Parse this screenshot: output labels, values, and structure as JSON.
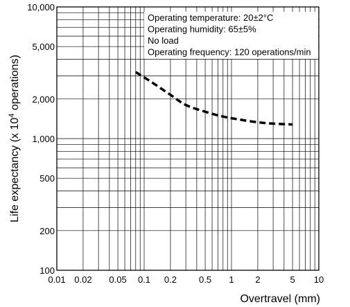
{
  "chart_data": {
    "type": "line",
    "xlabel": "Overtravel (mm)",
    "ylabel": "Life expectancy  (x 10",
    "ylabel_superscript": "4",
    "ylabel_suffix": " operations)",
    "x_scale": "log",
    "y_scale": "log",
    "xlim": [
      0.01,
      10
    ],
    "ylim": [
      100,
      10000
    ],
    "x_tick_labels": [
      {
        "value": 0.01,
        "label": "0.01"
      },
      {
        "value": 0.02,
        "label": "0.02"
      },
      {
        "value": 0.05,
        "label": "0.05"
      },
      {
        "value": 0.1,
        "label": "0.1"
      },
      {
        "value": 0.2,
        "label": "0.2"
      },
      {
        "value": 0.5,
        "label": "0.5"
      },
      {
        "value": 1,
        "label": "1"
      },
      {
        "value": 2,
        "label": "2"
      },
      {
        "value": 5,
        "label": "5"
      },
      {
        "value": 10,
        "label": "10"
      }
    ],
    "y_tick_labels": [
      {
        "value": 100,
        "label": "100"
      },
      {
        "value": 200,
        "label": "200"
      },
      {
        "value": 500,
        "label": "500"
      },
      {
        "value": 1000,
        "label": "1,000"
      },
      {
        "value": 2000,
        "label": "2,000"
      },
      {
        "value": 5000,
        "label": "5,000"
      },
      {
        "value": 10000,
        "label": "10,000"
      }
    ],
    "grid": true,
    "conditions": [
      "Operating temperature: 20±2°C",
      "Operating humidity: 65±5%",
      "No load",
      "Operating frequency: 120 operations/min"
    ],
    "series": [
      {
        "style": "dashed",
        "color": "#000000",
        "x": [
          0.08,
          0.12,
          0.2,
          0.3,
          0.5,
          0.8,
          1.2,
          2,
          3,
          5
        ],
        "y": [
          3200,
          2700,
          2150,
          1800,
          1600,
          1470,
          1400,
          1330,
          1300,
          1280
        ]
      }
    ]
  }
}
